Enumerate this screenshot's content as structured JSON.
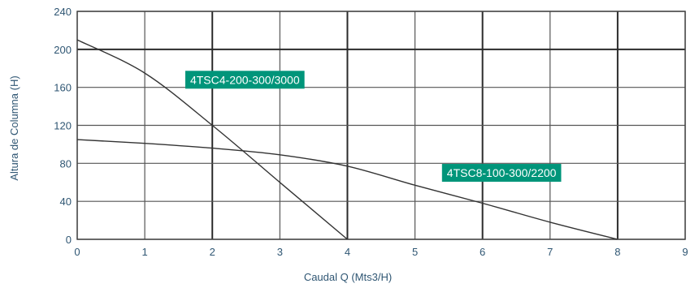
{
  "chart_data": {
    "type": "line",
    "xlabel": "Caudal Q (Mts3/H)",
    "ylabel": "Altura de Columna (H)",
    "xlim": [
      0,
      9
    ],
    "ylim": [
      0,
      240
    ],
    "xticks": [
      0,
      1,
      2,
      3,
      4,
      5,
      6,
      7,
      8,
      9
    ],
    "yticks": [
      0,
      40,
      80,
      120,
      160,
      200,
      240
    ],
    "grid": true,
    "label_color": "#00957a",
    "line_color": "#333333",
    "series": [
      {
        "name": "4TSC4-200-300/3000",
        "x": [
          0,
          1,
          2,
          3,
          4
        ],
        "y": [
          210,
          175,
          120,
          60,
          0
        ]
      },
      {
        "name": "4TSC8-100-300/2200",
        "x": [
          0,
          1,
          2,
          3,
          4,
          5,
          6,
          7,
          8
        ],
        "y": [
          105,
          101,
          96,
          89,
          77,
          57,
          38,
          18,
          0
        ]
      }
    ]
  }
}
